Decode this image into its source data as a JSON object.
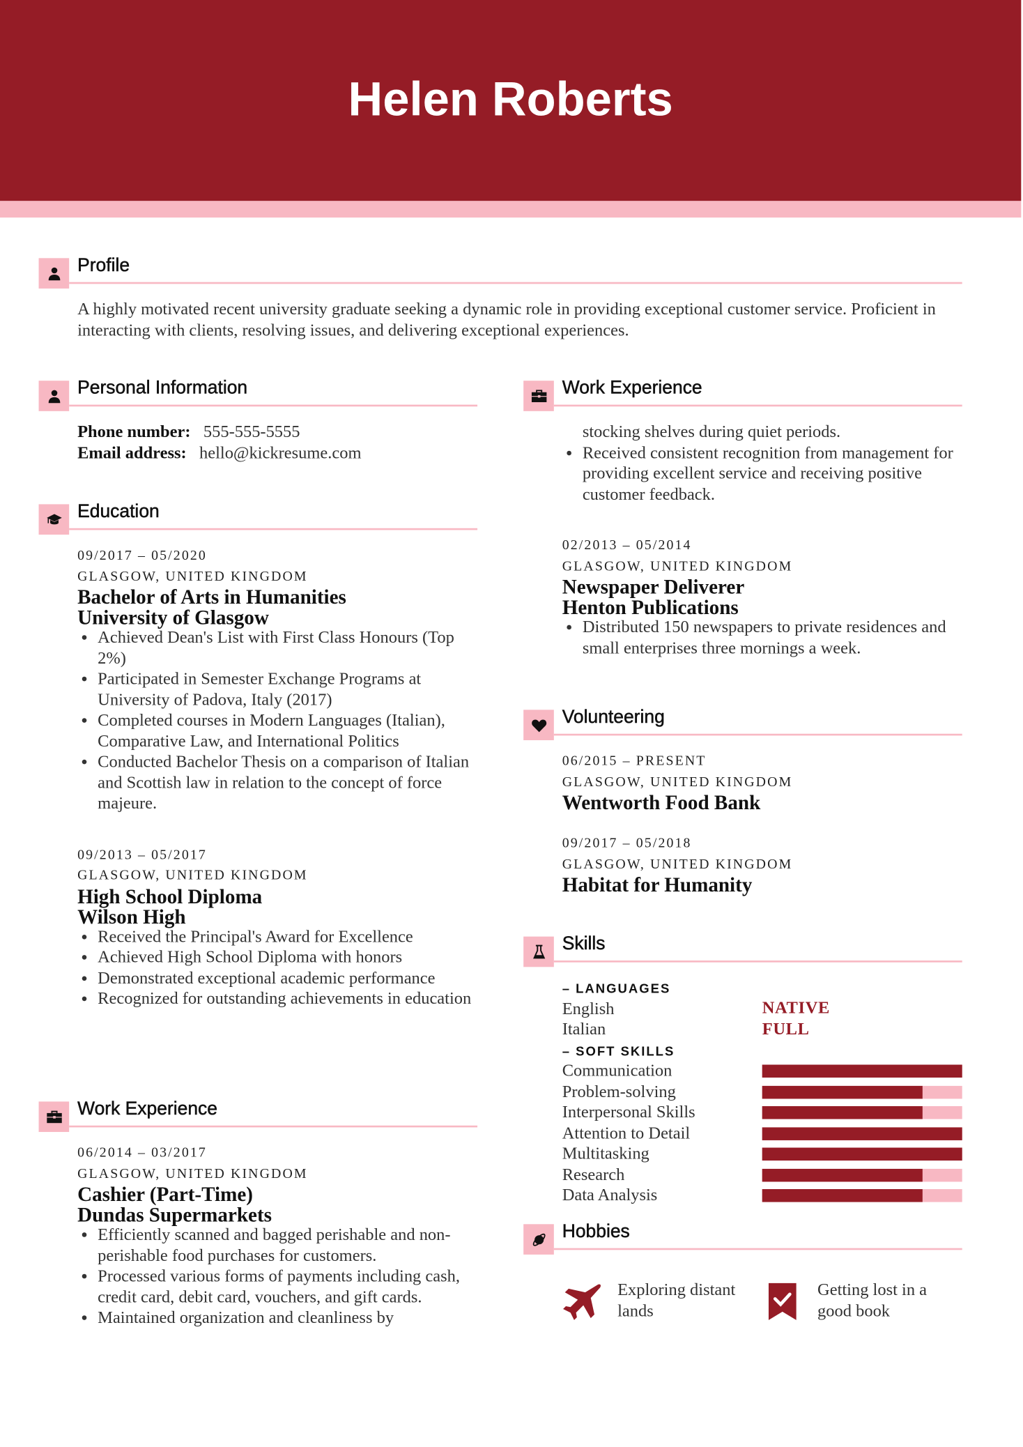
{
  "colors": {
    "accent": "#951c26",
    "accent_light": "#f8b8c3"
  },
  "header": {
    "name": "Helen Roberts"
  },
  "profile": {
    "title": "Profile",
    "icon": "person-icon",
    "text": "A highly motivated recent university graduate seeking a dynamic role in providing exceptional customer service. Proficient in interacting with clients, resolving issues, and delivering exceptional experiences."
  },
  "personal": {
    "title": "Personal Information",
    "icon": "person-icon",
    "fields": [
      {
        "label": "Phone number:",
        "value": "555-555-5555"
      },
      {
        "label": "Email address:",
        "value": "hello@kickresume.com"
      }
    ]
  },
  "education": {
    "title": "Education",
    "icon": "graduation-cap-icon",
    "entries": [
      {
        "date": "09/2017 – 05/2020",
        "location": "GLASGOW, UNITED KINGDOM",
        "title": "Bachelor of Arts in Humanities",
        "org": "University of Glasgow",
        "bullets": [
          "Achieved Dean's List with First Class Honours (Top 2%)",
          "Participated in Semester Exchange Programs at University of Padova, Italy (2017)",
          "Completed courses in Modern Languages (Italian), Comparative Law, and International Politics",
          "Conducted Bachelor Thesis on a comparison of Italian and Scottish law in relation to the concept of force majeure."
        ]
      },
      {
        "date": "09/2013 – 05/2017",
        "location": "GLASGOW, UNITED KINGDOM",
        "title": "High School Diploma",
        "org": "Wilson High",
        "bullets": [
          "Received the Principal's Award for Excellence",
          "Achieved High School Diploma with honors",
          "Demonstrated exceptional academic performance",
          "Recognized for outstanding achievements in education"
        ]
      }
    ]
  },
  "work_left": {
    "title": "Work Experience",
    "icon": "briefcase-icon",
    "entries": [
      {
        "date": "06/2014 – 03/2017",
        "location": "GLASGOW, UNITED KINGDOM",
        "title": "Cashier (Part-Time)",
        "org": "Dundas Supermarkets",
        "bullets": [
          "Efficiently scanned and bagged perishable and non-perishable food purchases for customers.",
          "Processed various forms of payments including cash, credit card, debit card, vouchers, and gift cards.",
          "Maintained organization and cleanliness by"
        ]
      }
    ]
  },
  "work_right": {
    "title": "Work Experience",
    "icon": "briefcase-icon",
    "continued": "stocking shelves during quiet periods.",
    "continued_bullets": [
      "Received consistent recognition from management for providing excellent service and receiving positive customer feedback."
    ],
    "entries": [
      {
        "date": "02/2013 – 05/2014",
        "location": "GLASGOW, UNITED KINGDOM",
        "title": "Newspaper Deliverer",
        "org": "Henton Publications",
        "bullets": [
          "Distributed 150 newspapers to private residences and small enterprises three mornings a week."
        ]
      }
    ]
  },
  "volunteering": {
    "title": "Volunteering",
    "icon": "heart-icon",
    "entries": [
      {
        "date": "06/2015 – PRESENT",
        "location": "GLASGOW, UNITED KINGDOM",
        "title": "Wentworth Food Bank"
      },
      {
        "date": "09/2017 – 05/2018",
        "location": "GLASGOW, UNITED KINGDOM",
        "title": "Habitat for Humanity"
      }
    ]
  },
  "skills": {
    "title": "Skills",
    "icon": "flask-icon",
    "languages_label": "– LANGUAGES",
    "languages": [
      {
        "name": "English",
        "level": "NATIVE"
      },
      {
        "name": "Italian",
        "level": "FULL"
      }
    ],
    "soft_label": "– SOFT SKILLS",
    "soft": [
      {
        "name": "Communication",
        "level_pct": 100
      },
      {
        "name": "Problem-solving",
        "level_pct": 80
      },
      {
        "name": "Interpersonal Skills",
        "level_pct": 80
      },
      {
        "name": "Attention to Detail",
        "level_pct": 100
      },
      {
        "name": "Multitasking",
        "level_pct": 100
      },
      {
        "name": "Research",
        "level_pct": 80
      },
      {
        "name": "Data Analysis",
        "level_pct": 80
      }
    ]
  },
  "hobbies": {
    "title": "Hobbies",
    "icon": "planet-icon",
    "items": [
      {
        "icon": "airplane-icon",
        "text": "Exploring distant lands"
      },
      {
        "icon": "bookmark-check-icon",
        "text": "Getting lost in a good book"
      }
    ]
  }
}
